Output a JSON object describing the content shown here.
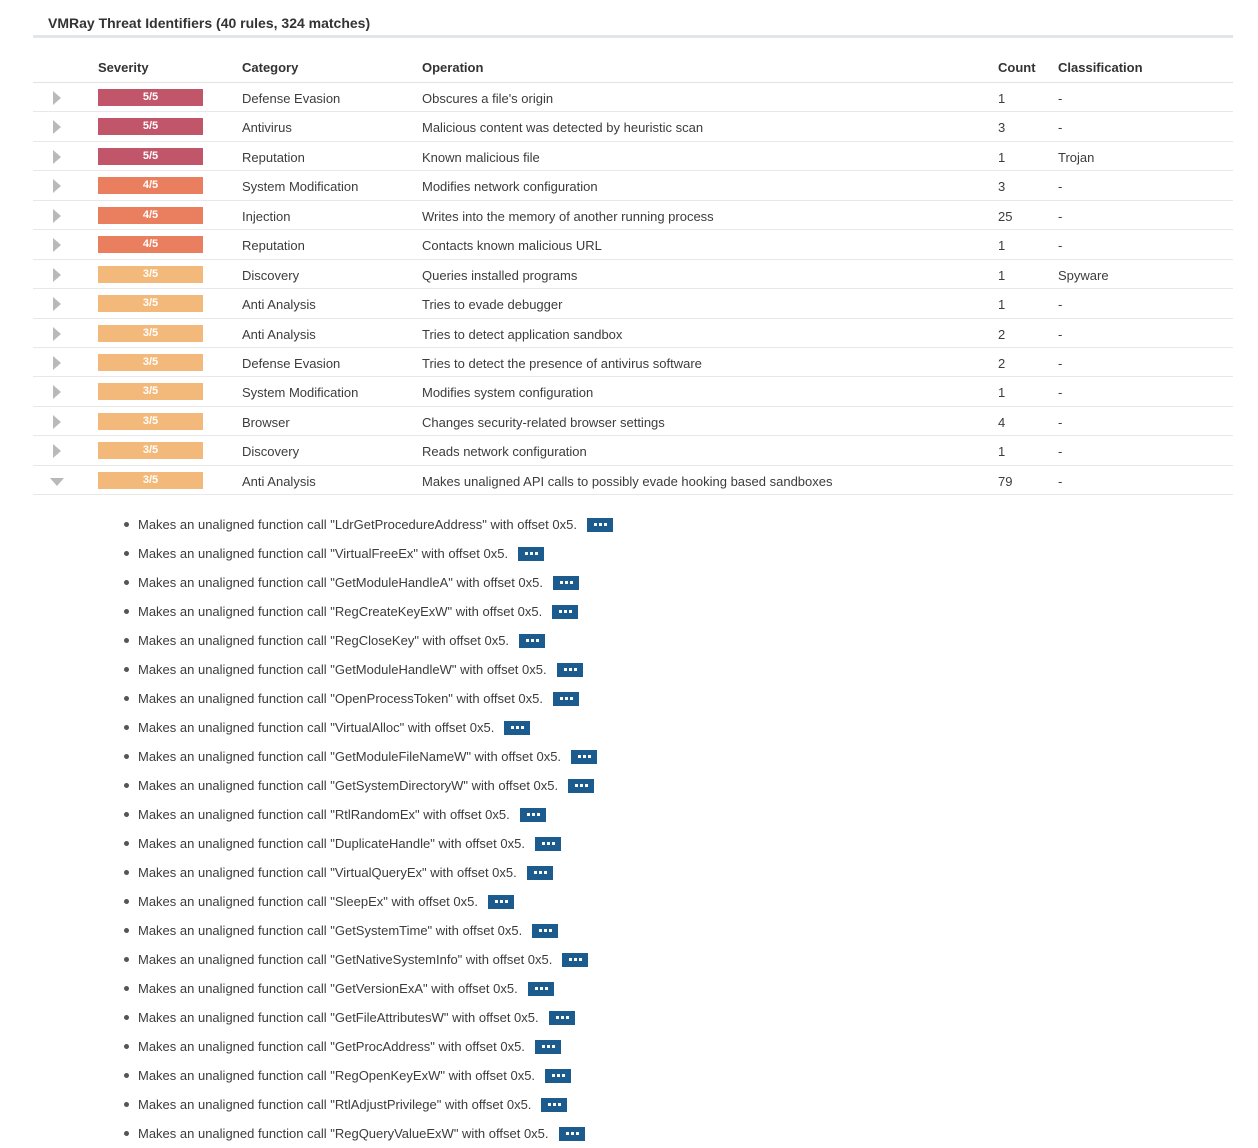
{
  "title": "VMRay Threat Identifiers (40 rules, 324 matches)",
  "headers": {
    "severity": "Severity",
    "category": "Category",
    "operation": "Operation",
    "count": "Count",
    "classification": "Classification"
  },
  "severity_colors": {
    "5/5": "#c1556a",
    "4/5": "#ea7f5f",
    "3/5": "#f3b97a"
  },
  "rows": [
    {
      "severity": "5/5",
      "category": "Defense Evasion",
      "operation": "Obscures a file's origin",
      "count": "1",
      "classification": "-",
      "expanded": false
    },
    {
      "severity": "5/5",
      "category": "Antivirus",
      "operation": "Malicious content was detected by heuristic scan",
      "count": "3",
      "classification": "-",
      "expanded": false
    },
    {
      "severity": "5/5",
      "category": "Reputation",
      "operation": "Known malicious file",
      "count": "1",
      "classification": "Trojan",
      "expanded": false
    },
    {
      "severity": "4/5",
      "category": "System Modification",
      "operation": "Modifies network configuration",
      "count": "3",
      "classification": "-",
      "expanded": false
    },
    {
      "severity": "4/5",
      "category": "Injection",
      "operation": "Writes into the memory of another running process",
      "count": "25",
      "classification": "-",
      "expanded": false
    },
    {
      "severity": "4/5",
      "category": "Reputation",
      "operation": "Contacts known malicious URL",
      "count": "1",
      "classification": "-",
      "expanded": false
    },
    {
      "severity": "3/5",
      "category": "Discovery",
      "operation": "Queries installed programs",
      "count": "1",
      "classification": "Spyware",
      "expanded": false
    },
    {
      "severity": "3/5",
      "category": "Anti Analysis",
      "operation": "Tries to evade debugger",
      "count": "1",
      "classification": "-",
      "expanded": false
    },
    {
      "severity": "3/5",
      "category": "Anti Analysis",
      "operation": "Tries to detect application sandbox",
      "count": "2",
      "classification": "-",
      "expanded": false
    },
    {
      "severity": "3/5",
      "category": "Defense Evasion",
      "operation": "Tries to detect the presence of antivirus software",
      "count": "2",
      "classification": "-",
      "expanded": false
    },
    {
      "severity": "3/5",
      "category": "System Modification",
      "operation": "Modifies system configuration",
      "count": "1",
      "classification": "-",
      "expanded": false
    },
    {
      "severity": "3/5",
      "category": "Browser",
      "operation": "Changes security-related browser settings",
      "count": "4",
      "classification": "-",
      "expanded": false
    },
    {
      "severity": "3/5",
      "category": "Discovery",
      "operation": "Reads network configuration",
      "count": "1",
      "classification": "-",
      "expanded": false
    },
    {
      "severity": "3/5",
      "category": "Anti Analysis",
      "operation": "Makes unaligned API calls to possibly evade hooking based sandboxes",
      "count": "79",
      "classification": "-",
      "expanded": true
    }
  ],
  "details": [
    "Makes an unaligned function call \"LdrGetProcedureAddress\" with offset 0x5.",
    "Makes an unaligned function call \"VirtualFreeEx\" with offset 0x5.",
    "Makes an unaligned function call \"GetModuleHandleA\" with offset 0x5.",
    "Makes an unaligned function call \"RegCreateKeyExW\" with offset 0x5.",
    "Makes an unaligned function call \"RegCloseKey\" with offset 0x5.",
    "Makes an unaligned function call \"GetModuleHandleW\" with offset 0x5.",
    "Makes an unaligned function call \"OpenProcessToken\" with offset 0x5.",
    "Makes an unaligned function call \"VirtualAlloc\" with offset 0x5.",
    "Makes an unaligned function call \"GetModuleFileNameW\" with offset 0x5.",
    "Makes an unaligned function call \"GetSystemDirectoryW\" with offset 0x5.",
    "Makes an unaligned function call \"RtlRandomEx\" with offset 0x5.",
    "Makes an unaligned function call \"DuplicateHandle\" with offset 0x5.",
    "Makes an unaligned function call \"VirtualQueryEx\" with offset 0x5.",
    "Makes an unaligned function call \"SleepEx\" with offset 0x5.",
    "Makes an unaligned function call \"GetSystemTime\" with offset 0x5.",
    "Makes an unaligned function call \"GetNativeSystemInfo\" with offset 0x5.",
    "Makes an unaligned function call \"GetVersionExA\" with offset 0x5.",
    "Makes an unaligned function call \"GetFileAttributesW\" with offset 0x5.",
    "Makes an unaligned function call \"GetProcAddress\" with offset 0x5.",
    "Makes an unaligned function call \"RegOpenKeyExW\" with offset 0x5.",
    "Makes an unaligned function call \"RtlAdjustPrivilege\" with offset 0x5.",
    "Makes an unaligned function call \"RegQueryValueExW\" with offset 0x5."
  ]
}
